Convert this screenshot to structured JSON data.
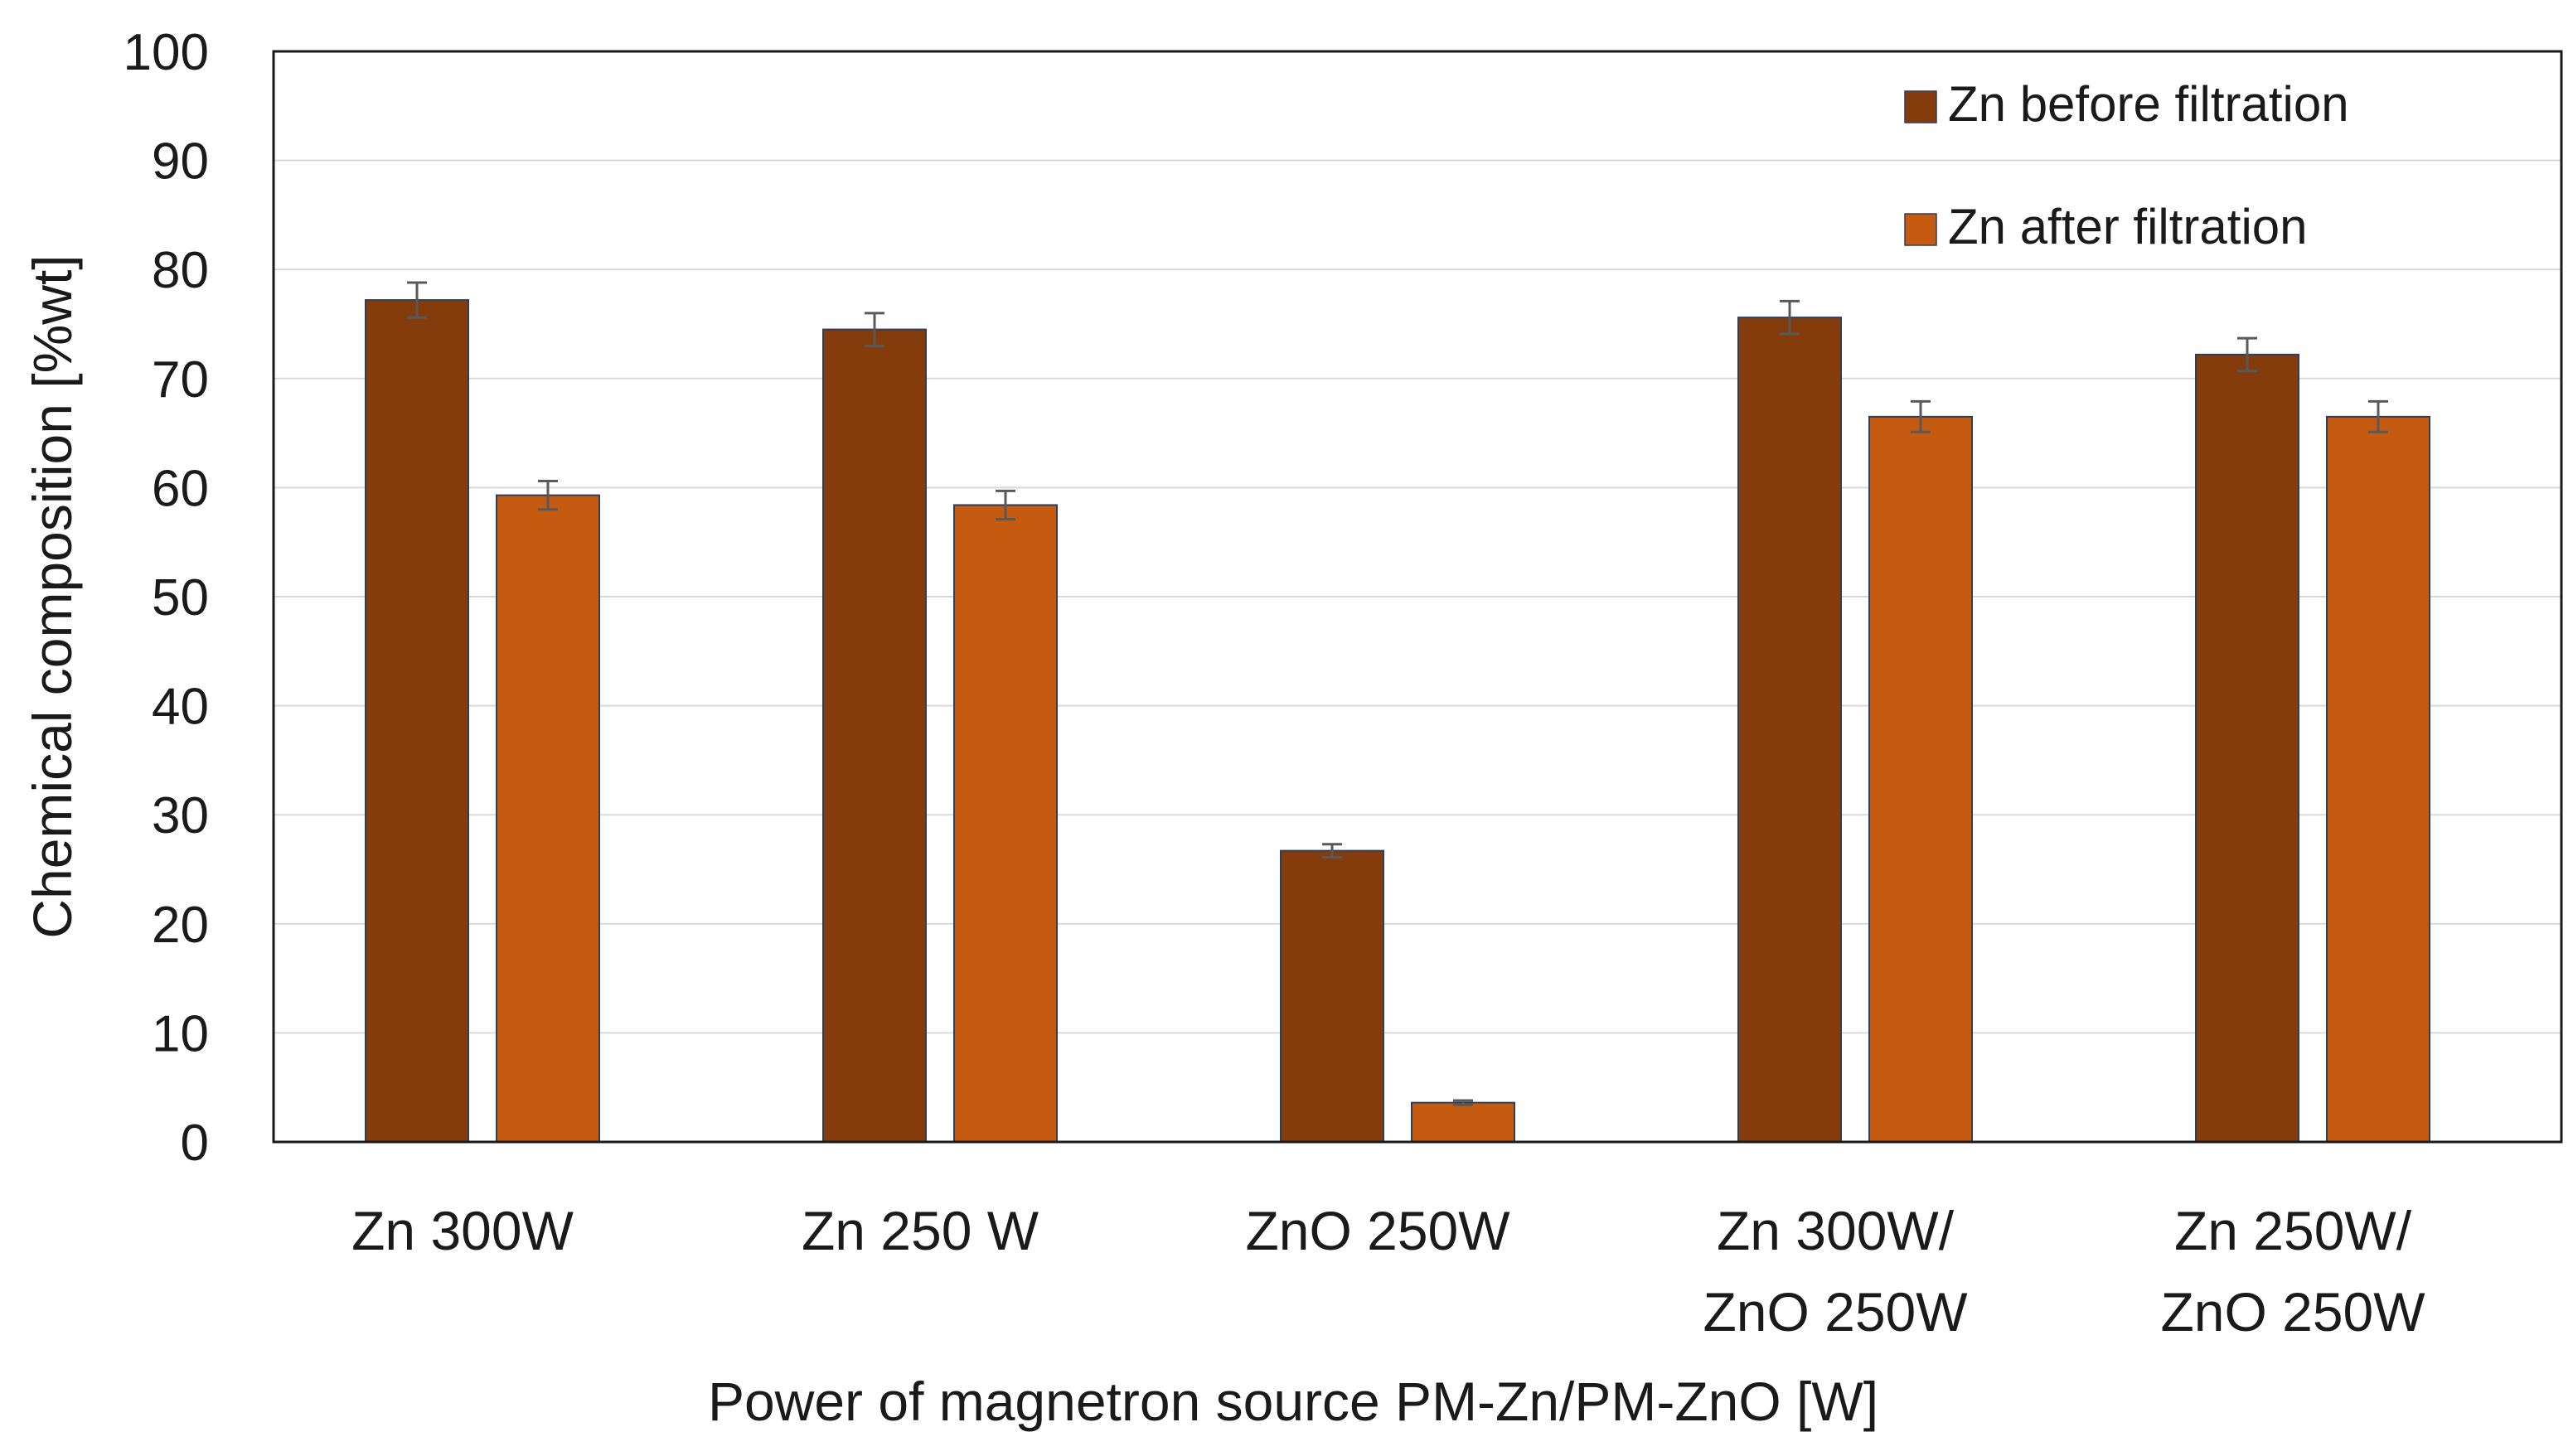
{
  "chart_data": {
    "type": "bar",
    "title": "",
    "xlabel": "Power of magnetron source PM-Zn/PM-ZnO  [W]",
    "ylabel": "Chemical composition  [%wt]",
    "ylim": [
      0,
      100
    ],
    "yticks": [
      0,
      10,
      20,
      30,
      40,
      50,
      60,
      70,
      80,
      90,
      100
    ],
    "grid": true,
    "legend_position": "top-right",
    "categories": [
      [
        "Zn 300W"
      ],
      [
        "Zn 250 W"
      ],
      [
        "ZnO 250W"
      ],
      [
        "Zn 300W/",
        "ZnO 250W"
      ],
      [
        "Zn 250W/",
        "ZnO 250W"
      ]
    ],
    "series": [
      {
        "name": "Zn before filtration",
        "color": "#843C0C",
        "values": [
          77.2,
          74.5,
          26.7,
          75.6,
          72.2
        ],
        "errors": [
          1.6,
          1.5,
          0.6,
          1.5,
          1.5
        ]
      },
      {
        "name": "Zn after filtration",
        "color": "#C55A11",
        "values": [
          59.3,
          58.4,
          3.6,
          66.5,
          66.5
        ],
        "errors": [
          1.3,
          1.3,
          0.2,
          1.4,
          1.4
        ]
      }
    ],
    "colors": {
      "axis": "#1a1a1a",
      "grid": "#d9d9d9",
      "bar_edge": "#2f3e5c",
      "error_bar": "#595959"
    }
  }
}
